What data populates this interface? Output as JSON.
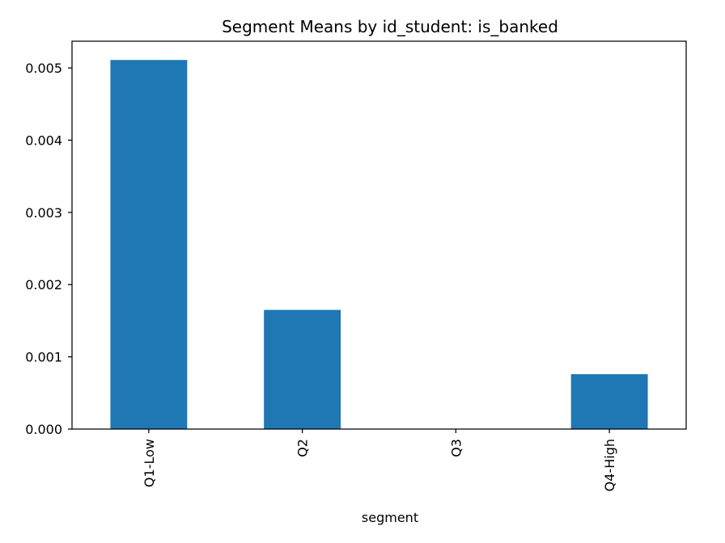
{
  "chart_data": {
    "type": "bar",
    "title": "Segment Means by id_student: is_banked",
    "xlabel": "segment",
    "ylabel": "",
    "categories": [
      "Q1-Low",
      "Q2",
      "Q3",
      "Q4-High"
    ],
    "values": [
      0.00511,
      0.00165,
      0.0,
      0.00076
    ],
    "ylim": [
      0,
      0.00537
    ],
    "yticks": [
      "0.000",
      "0.001",
      "0.002",
      "0.003",
      "0.004",
      "0.005"
    ],
    "bar_color": "#1f77b4",
    "grid": false,
    "legend": "none"
  }
}
